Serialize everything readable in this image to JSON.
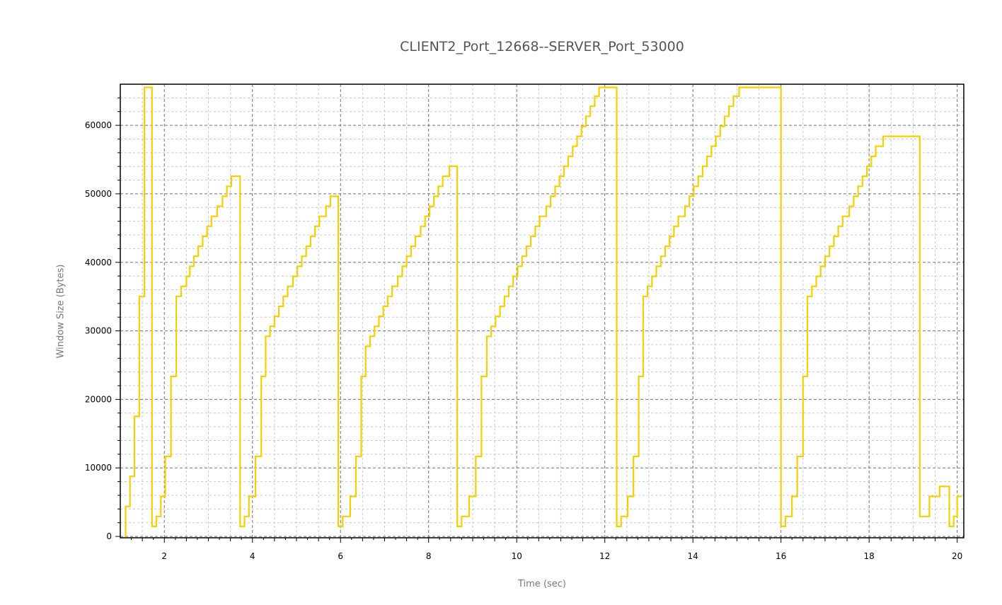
{
  "chart_data": {
    "type": "line",
    "title": "CLIENT2_Port_12668--SERVER_Port_53000",
    "xlabel": "Time (sec)",
    "ylabel": "Window Size (Bytes)",
    "xlim": [
      1.0,
      20.15
    ],
    "ylim": [
      -200,
      66000
    ],
    "x_ticks": [
      2,
      4,
      6,
      8,
      10,
      12,
      14,
      16,
      18,
      20
    ],
    "y_ticks": [
      0,
      10000,
      20000,
      30000,
      40000,
      50000,
      60000
    ],
    "grid": true,
    "line_color": "#f5d000",
    "series": [
      {
        "step": true,
        "points": [
          [
            1.1,
            0
          ],
          [
            1.12,
            4380
          ],
          [
            1.22,
            8760
          ],
          [
            1.32,
            17520
          ],
          [
            1.43,
            35040
          ],
          [
            1.55,
            65535
          ],
          [
            1.72,
            1460
          ],
          [
            1.82,
            2920
          ],
          [
            1.92,
            5840
          ],
          [
            2.02,
            11680
          ],
          [
            2.15,
            23360
          ],
          [
            2.27,
            35040
          ],
          [
            2.38,
            36500
          ],
          [
            2.5,
            37960
          ],
          [
            2.58,
            39420
          ],
          [
            2.67,
            40880
          ],
          [
            2.77,
            42340
          ],
          [
            2.87,
            43800
          ],
          [
            2.97,
            45260
          ],
          [
            3.07,
            46720
          ],
          [
            3.2,
            48180
          ],
          [
            3.32,
            49640
          ],
          [
            3.42,
            51100
          ],
          [
            3.52,
            52560
          ],
          [
            3.72,
            1460
          ],
          [
            3.82,
            2920
          ],
          [
            3.92,
            5840
          ],
          [
            4.07,
            11680
          ],
          [
            4.2,
            23360
          ],
          [
            4.3,
            29200
          ],
          [
            4.4,
            30660
          ],
          [
            4.5,
            32120
          ],
          [
            4.6,
            33580
          ],
          [
            4.7,
            35040
          ],
          [
            4.8,
            36500
          ],
          [
            4.92,
            37960
          ],
          [
            5.02,
            39420
          ],
          [
            5.12,
            40880
          ],
          [
            5.22,
            42340
          ],
          [
            5.32,
            43800
          ],
          [
            5.42,
            45260
          ],
          [
            5.52,
            46720
          ],
          [
            5.67,
            48180
          ],
          [
            5.77,
            49640
          ],
          [
            5.95,
            1460
          ],
          [
            6.05,
            2920
          ],
          [
            6.22,
            5840
          ],
          [
            6.35,
            11680
          ],
          [
            6.47,
            23360
          ],
          [
            6.57,
            27740
          ],
          [
            6.67,
            29200
          ],
          [
            6.77,
            30660
          ],
          [
            6.87,
            32120
          ],
          [
            6.97,
            33580
          ],
          [
            7.07,
            35040
          ],
          [
            7.17,
            36500
          ],
          [
            7.3,
            37960
          ],
          [
            7.4,
            39420
          ],
          [
            7.5,
            40880
          ],
          [
            7.6,
            42340
          ],
          [
            7.7,
            43800
          ],
          [
            7.82,
            45260
          ],
          [
            7.92,
            46720
          ],
          [
            8.02,
            48180
          ],
          [
            8.12,
            49640
          ],
          [
            8.22,
            51100
          ],
          [
            8.32,
            52560
          ],
          [
            8.47,
            54020
          ],
          [
            8.65,
            1460
          ],
          [
            8.75,
            2920
          ],
          [
            8.92,
            5840
          ],
          [
            9.07,
            11680
          ],
          [
            9.2,
            23360
          ],
          [
            9.32,
            29200
          ],
          [
            9.42,
            30660
          ],
          [
            9.52,
            32120
          ],
          [
            9.62,
            33580
          ],
          [
            9.72,
            35040
          ],
          [
            9.82,
            36500
          ],
          [
            9.92,
            37960
          ],
          [
            10.02,
            39420
          ],
          [
            10.12,
            40880
          ],
          [
            10.22,
            42340
          ],
          [
            10.32,
            43800
          ],
          [
            10.42,
            45260
          ],
          [
            10.52,
            46720
          ],
          [
            10.67,
            48180
          ],
          [
            10.77,
            49640
          ],
          [
            10.87,
            51100
          ],
          [
            10.97,
            52560
          ],
          [
            11.07,
            54020
          ],
          [
            11.17,
            55480
          ],
          [
            11.27,
            56940
          ],
          [
            11.37,
            58400
          ],
          [
            11.47,
            59860
          ],
          [
            11.57,
            61320
          ],
          [
            11.67,
            62780
          ],
          [
            11.77,
            64240
          ],
          [
            11.87,
            65535
          ],
          [
            12.27,
            1460
          ],
          [
            12.37,
            2920
          ],
          [
            12.52,
            5840
          ],
          [
            12.65,
            11680
          ],
          [
            12.77,
            23360
          ],
          [
            12.87,
            35040
          ],
          [
            12.97,
            36500
          ],
          [
            13.07,
            37960
          ],
          [
            13.17,
            39420
          ],
          [
            13.27,
            40880
          ],
          [
            13.37,
            42340
          ],
          [
            13.47,
            43800
          ],
          [
            13.57,
            45260
          ],
          [
            13.67,
            46720
          ],
          [
            13.82,
            48180
          ],
          [
            13.92,
            49640
          ],
          [
            14.02,
            51100
          ],
          [
            14.12,
            52560
          ],
          [
            14.22,
            54020
          ],
          [
            14.32,
            55480
          ],
          [
            14.42,
            56940
          ],
          [
            14.52,
            58400
          ],
          [
            14.62,
            59860
          ],
          [
            14.72,
            61320
          ],
          [
            14.82,
            62780
          ],
          [
            14.92,
            64240
          ],
          [
            15.05,
            65535
          ],
          [
            16.0,
            1460
          ],
          [
            16.1,
            2920
          ],
          [
            16.25,
            5840
          ],
          [
            16.37,
            11680
          ],
          [
            16.5,
            23360
          ],
          [
            16.6,
            35040
          ],
          [
            16.7,
            36500
          ],
          [
            16.8,
            37960
          ],
          [
            16.9,
            39420
          ],
          [
            17.0,
            40880
          ],
          [
            17.1,
            42340
          ],
          [
            17.2,
            43800
          ],
          [
            17.3,
            45260
          ],
          [
            17.4,
            46720
          ],
          [
            17.55,
            48180
          ],
          [
            17.65,
            49640
          ],
          [
            17.75,
            51100
          ],
          [
            17.85,
            52560
          ],
          [
            17.95,
            54020
          ],
          [
            18.05,
            55480
          ],
          [
            18.15,
            56940
          ],
          [
            18.32,
            58400
          ],
          [
            19.15,
            2920
          ],
          [
            19.37,
            5840
          ],
          [
            19.6,
            7300
          ],
          [
            19.82,
            1460
          ],
          [
            19.92,
            2920
          ],
          [
            20.0,
            5840
          ]
        ],
        "end_x": 20.1
      }
    ]
  }
}
